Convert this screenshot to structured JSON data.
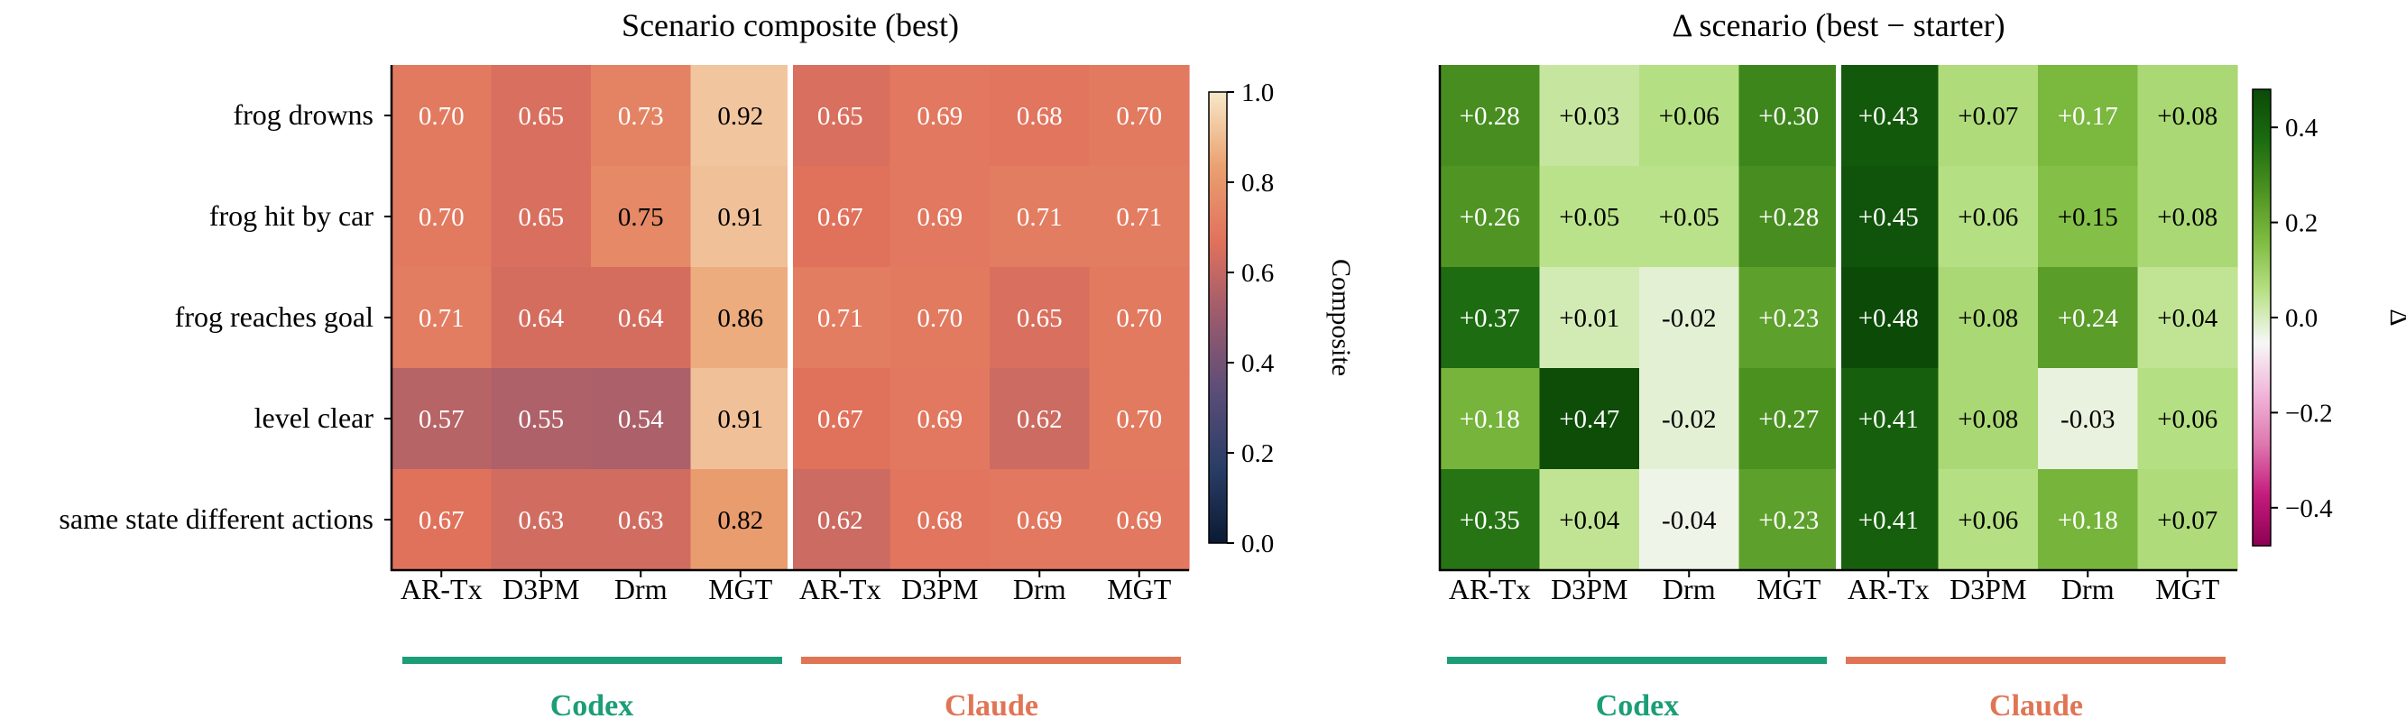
{
  "chart_data": [
    {
      "type": "heatmap",
      "title": "Scenario composite (best)",
      "rows": [
        "frog drowns",
        "frog hit by car",
        "frog reaches goal",
        "level clear",
        "same state different actions"
      ],
      "columns": [
        "AR-Tx",
        "D3PM",
        "Drm",
        "MGT",
        "AR-Tx",
        "D3PM",
        "Drm",
        "MGT"
      ],
      "groups": [
        "Codex",
        "Claude"
      ],
      "values": [
        [
          0.7,
          0.65,
          0.73,
          0.92,
          0.65,
          0.69,
          0.68,
          0.7
        ],
        [
          0.7,
          0.65,
          0.75,
          0.91,
          0.67,
          0.69,
          0.71,
          0.71
        ],
        [
          0.71,
          0.64,
          0.64,
          0.86,
          0.71,
          0.7,
          0.65,
          0.7
        ],
        [
          0.57,
          0.55,
          0.54,
          0.91,
          0.67,
          0.69,
          0.62,
          0.7
        ],
        [
          0.67,
          0.63,
          0.63,
          0.82,
          0.62,
          0.68,
          0.69,
          0.69
        ]
      ],
      "value_labels": [
        [
          "0.70",
          "0.65",
          "0.73",
          "0.92",
          "0.65",
          "0.69",
          "0.68",
          "0.70"
        ],
        [
          "0.70",
          "0.65",
          "0.75",
          "0.91",
          "0.67",
          "0.69",
          "0.71",
          "0.71"
        ],
        [
          "0.71",
          "0.64",
          "0.64",
          "0.86",
          "0.71",
          "0.70",
          "0.65",
          "0.70"
        ],
        [
          "0.57",
          "0.55",
          "0.54",
          "0.91",
          "0.67",
          "0.69",
          "0.62",
          "0.70"
        ],
        [
          "0.67",
          "0.63",
          "0.63",
          "0.82",
          "0.62",
          "0.68",
          "0.69",
          "0.69"
        ]
      ],
      "colorbar": {
        "label": "Composite",
        "range": [
          0.0,
          1.0
        ],
        "ticks": [
          0.0,
          0.2,
          0.4,
          0.6,
          0.8,
          1.0
        ],
        "tick_labels": [
          "0.0",
          "0.2",
          "0.4",
          "0.6",
          "0.8",
          "1.0"
        ],
        "colormap": [
          "#0b1a33",
          "#2a3d66",
          "#5a4d78",
          "#9a5a6e",
          "#e0715c",
          "#eaa070",
          "#f7e8c8"
        ]
      }
    },
    {
      "type": "heatmap",
      "title": "Δ scenario (best − starter)",
      "rows": [
        "frog drowns",
        "frog hit by car",
        "frog reaches goal",
        "level clear",
        "same state different actions"
      ],
      "columns": [
        "AR-Tx",
        "D3PM",
        "Drm",
        "MGT",
        "AR-Tx",
        "D3PM",
        "Drm",
        "MGT"
      ],
      "groups": [
        "Codex",
        "Claude"
      ],
      "values": [
        [
          0.28,
          0.03,
          0.06,
          0.3,
          0.43,
          0.07,
          0.17,
          0.08
        ],
        [
          0.26,
          0.05,
          0.05,
          0.28,
          0.45,
          0.06,
          0.15,
          0.08
        ],
        [
          0.37,
          0.01,
          -0.02,
          0.23,
          0.48,
          0.08,
          0.24,
          0.04
        ],
        [
          0.18,
          0.47,
          -0.02,
          0.27,
          0.41,
          0.08,
          -0.03,
          0.06
        ],
        [
          0.35,
          0.04,
          -0.04,
          0.23,
          0.41,
          0.06,
          0.18,
          0.07
        ]
      ],
      "value_labels": [
        [
          "+0.28",
          "+0.03",
          "+0.06",
          "+0.30",
          "+0.43",
          "+0.07",
          "+0.17",
          "+0.08"
        ],
        [
          "+0.26",
          "+0.05",
          "+0.05",
          "+0.28",
          "+0.45",
          "+0.06",
          "+0.15",
          "+0.08"
        ],
        [
          "+0.37",
          "+0.01",
          "-0.02",
          "+0.23",
          "+0.48",
          "+0.08",
          "+0.24",
          "+0.04"
        ],
        [
          "+0.18",
          "+0.47",
          "-0.02",
          "+0.27",
          "+0.41",
          "+0.08",
          "-0.03",
          "+0.06"
        ],
        [
          "+0.35",
          "+0.04",
          "-0.04",
          "+0.23",
          "+0.41",
          "+0.06",
          "+0.18",
          "+0.07"
        ]
      ],
      "colorbar": {
        "label": "Δ",
        "range": [
          -0.48,
          0.48
        ],
        "ticks": [
          -0.4,
          -0.2,
          0.0,
          0.2,
          0.4
        ],
        "tick_labels": [
          "−0.4",
          "−0.2",
          "0.0",
          "0.2",
          "0.4"
        ],
        "colormap": [
          "#8e0152",
          "#c51b7d",
          "#de77ae",
          "#f1b6da",
          "#f7f7f7",
          "#b8e186",
          "#7fbc41",
          "#4d9221",
          "#1b6b10",
          "#0b4a07"
        ]
      }
    }
  ],
  "colors": {
    "codex": "#1b9e77",
    "claude": "#e07555"
  }
}
